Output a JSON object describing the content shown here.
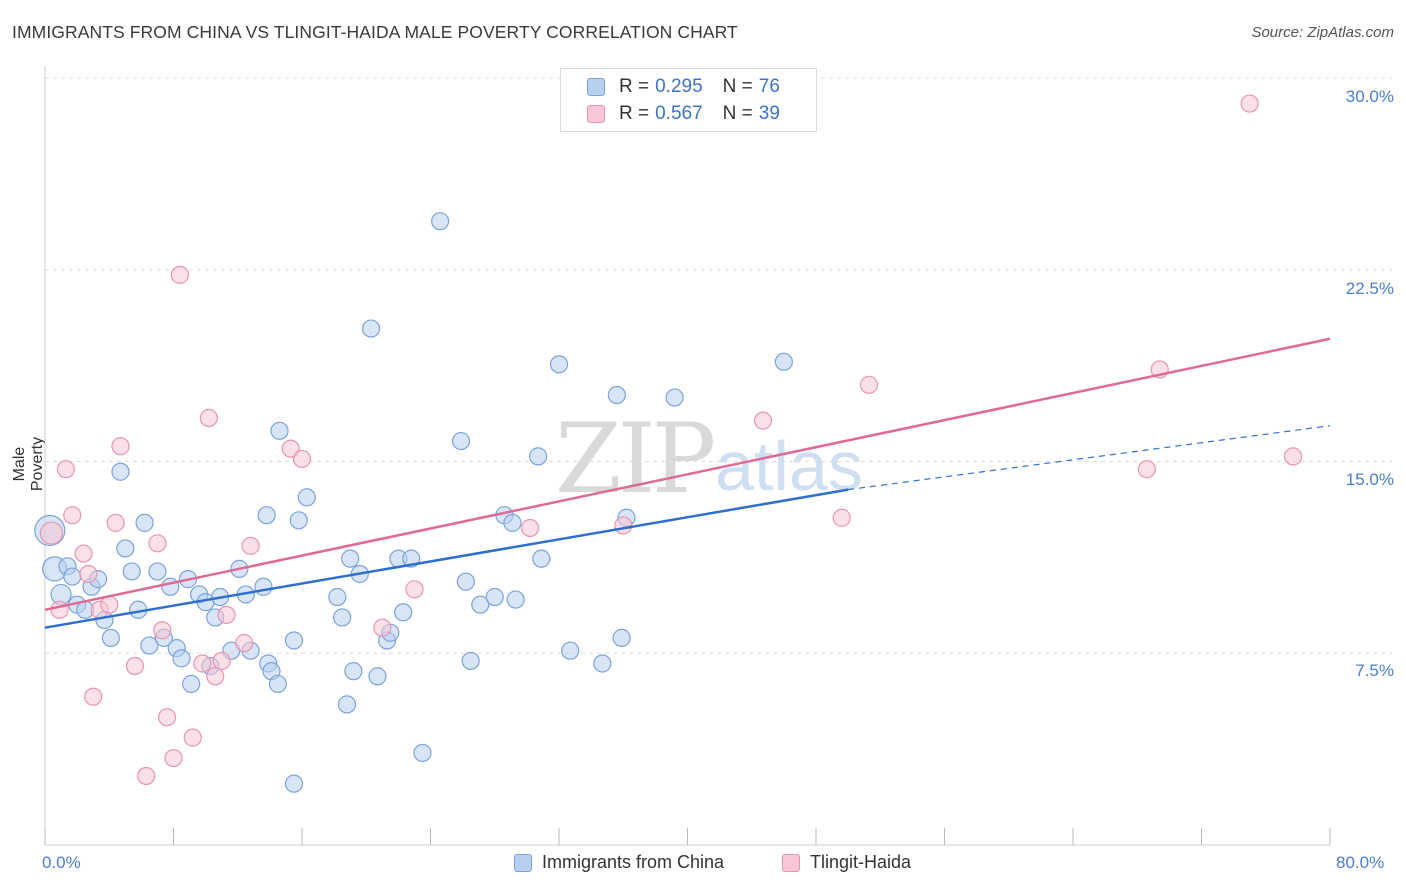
{
  "header": {
    "title": "IMMIGRANTS FROM CHINA VS TLINGIT-HAIDA MALE POVERTY CORRELATION CHART",
    "source": "Source: ZipAtlas.com"
  },
  "watermark": {
    "zip": "ZIP",
    "atlas": "atlas"
  },
  "legend": {
    "r_label": "R =",
    "n_label": "N =",
    "series": [
      {
        "name": "Immigrants from China",
        "r": "0.295",
        "n": "76"
      },
      {
        "name": "Tlingit-Haida",
        "r": "0.567",
        "n": "39"
      }
    ]
  },
  "colors": {
    "blue_fill": "#b8d0f0",
    "blue_stroke": "#7aa3dc",
    "blue_line": "#2f6fd0",
    "pink_fill": "#f8c6d4",
    "pink_stroke": "#e895b0",
    "pink_line": "#e06a95",
    "axis_text": "#4a7fd0",
    "grid": "#dddddd"
  },
  "chart_data": {
    "type": "scatter",
    "title": "IMMIGRANTS FROM CHINA VS TLINGIT-HAIDA MALE POVERTY CORRELATION CHART",
    "xlabel": "",
    "ylabel": "Male Poverty",
    "xlim": [
      0,
      80
    ],
    "ylim": [
      0,
      30
    ],
    "x_tick_labels": [
      "0.0%",
      "80.0%"
    ],
    "y_ticks": [
      7.5,
      15.0,
      22.5,
      30.0
    ],
    "y_tick_labels": [
      "7.5%",
      "15.0%",
      "22.5%",
      "30.0%"
    ],
    "grid": true,
    "legend_position": "top-center",
    "series": [
      {
        "name": "Immigrants from China",
        "color": "#7aa3dc",
        "trend": {
          "x0": 0,
          "y0": 8.5,
          "x1": 50,
          "y1": 13.9,
          "dashed_to_x": 80,
          "dashed_to_y": 16.4
        },
        "points": [
          [
            0.3,
            12.3
          ],
          [
            0.6,
            10.8
          ],
          [
            1.0,
            9.8
          ],
          [
            1.4,
            10.9
          ],
          [
            1.7,
            10.5
          ],
          [
            2.0,
            9.4
          ],
          [
            2.5,
            9.2
          ],
          [
            2.9,
            10.1
          ],
          [
            3.3,
            10.4
          ],
          [
            3.7,
            8.8
          ],
          [
            4.1,
            8.1
          ],
          [
            4.7,
            14.6
          ],
          [
            5.0,
            11.6
          ],
          [
            5.4,
            10.7
          ],
          [
            5.8,
            9.2
          ],
          [
            6.2,
            12.6
          ],
          [
            6.5,
            7.8
          ],
          [
            7.0,
            10.7
          ],
          [
            7.4,
            8.1
          ],
          [
            7.8,
            10.1
          ],
          [
            8.2,
            7.7
          ],
          [
            8.5,
            7.3
          ],
          [
            8.9,
            10.4
          ],
          [
            9.1,
            6.3
          ],
          [
            9.6,
            9.8
          ],
          [
            10.0,
            9.5
          ],
          [
            10.3,
            7.0
          ],
          [
            10.6,
            8.9
          ],
          [
            10.9,
            9.7
          ],
          [
            11.6,
            7.6
          ],
          [
            12.1,
            10.8
          ],
          [
            12.5,
            9.8
          ],
          [
            12.8,
            7.6
          ],
          [
            13.6,
            10.1
          ],
          [
            13.8,
            12.9
          ],
          [
            13.9,
            7.1
          ],
          [
            14.1,
            6.8
          ],
          [
            14.5,
            6.3
          ],
          [
            14.6,
            16.2
          ],
          [
            15.5,
            8.0
          ],
          [
            15.8,
            12.7
          ],
          [
            16.3,
            13.6
          ],
          [
            18.2,
            9.7
          ],
          [
            18.5,
            8.9
          ],
          [
            18.8,
            5.5
          ],
          [
            19.0,
            11.2
          ],
          [
            19.2,
            6.8
          ],
          [
            19.6,
            10.6
          ],
          [
            20.3,
            20.2
          ],
          [
            20.7,
            6.6
          ],
          [
            21.3,
            8.0
          ],
          [
            21.5,
            8.3
          ],
          [
            22.0,
            11.2
          ],
          [
            22.3,
            9.1
          ],
          [
            22.8,
            11.2
          ],
          [
            23.5,
            3.6
          ],
          [
            24.6,
            24.4
          ],
          [
            25.9,
            15.8
          ],
          [
            26.2,
            10.3
          ],
          [
            26.5,
            7.2
          ],
          [
            27.1,
            9.4
          ],
          [
            28.0,
            9.7
          ],
          [
            28.6,
            12.9
          ],
          [
            29.1,
            12.6
          ],
          [
            29.3,
            9.6
          ],
          [
            30.7,
            15.2
          ],
          [
            30.9,
            11.2
          ],
          [
            32.0,
            18.8
          ],
          [
            32.7,
            7.6
          ],
          [
            34.7,
            7.1
          ],
          [
            35.6,
            17.6
          ],
          [
            35.9,
            8.1
          ],
          [
            36.2,
            12.8
          ],
          [
            39.2,
            17.5
          ],
          [
            46.0,
            18.9
          ],
          [
            15.5,
            2.4
          ]
        ]
      },
      {
        "name": "Tlingit-Haida",
        "color": "#e895b0",
        "trend": {
          "x0": 0,
          "y0": 9.2,
          "x1": 80,
          "y1": 19.8
        },
        "points": [
          [
            0.4,
            12.2
          ],
          [
            0.9,
            9.2
          ],
          [
            1.3,
            14.7
          ],
          [
            1.7,
            12.9
          ],
          [
            2.4,
            11.4
          ],
          [
            2.7,
            10.6
          ],
          [
            3.0,
            5.8
          ],
          [
            3.4,
            9.2
          ],
          [
            4.0,
            9.4
          ],
          [
            4.4,
            12.6
          ],
          [
            4.7,
            15.6
          ],
          [
            5.6,
            7.0
          ],
          [
            6.3,
            2.7
          ],
          [
            7.0,
            11.8
          ],
          [
            7.3,
            8.4
          ],
          [
            7.6,
            5.0
          ],
          [
            8.0,
            3.4
          ],
          [
            8.4,
            22.3
          ],
          [
            9.2,
            4.2
          ],
          [
            10.2,
            16.7
          ],
          [
            10.6,
            6.6
          ],
          [
            11.0,
            7.2
          ],
          [
            11.3,
            9.0
          ],
          [
            12.4,
            7.9
          ],
          [
            12.8,
            11.7
          ],
          [
            15.3,
            15.5
          ],
          [
            16.0,
            15.1
          ],
          [
            21.0,
            8.5
          ],
          [
            23.0,
            10.0
          ],
          [
            30.2,
            12.4
          ],
          [
            36.0,
            12.5
          ],
          [
            44.7,
            16.6
          ],
          [
            49.6,
            12.8
          ],
          [
            51.3,
            18.0
          ],
          [
            68.6,
            14.7
          ],
          [
            69.4,
            18.6
          ],
          [
            77.7,
            15.2
          ],
          [
            75.0,
            29.0
          ],
          [
            9.8,
            7.1
          ]
        ]
      }
    ]
  }
}
